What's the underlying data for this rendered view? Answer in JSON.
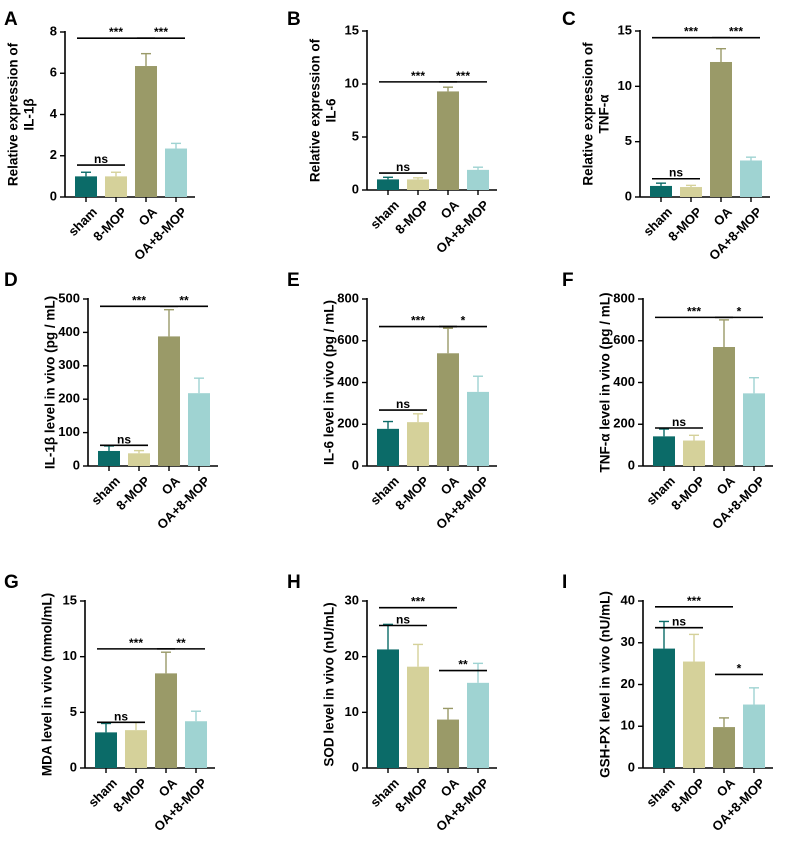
{
  "colors": [
    "#0b6b68",
    "#d5d19a",
    "#9a9a68",
    "#9fd3d2"
  ],
  "categories": [
    "sham",
    "8-MOP",
    "OA",
    "OA+8-MOP"
  ],
  "chart_data": [
    {
      "type": "bar",
      "letter": "A",
      "ylabel": [
        "Relative expression of",
        "IL-1β"
      ],
      "ylim": [
        0,
        8
      ],
      "ticks": [
        0,
        2,
        4,
        6,
        8
      ],
      "tick_labels": [
        "0",
        "2",
        "4",
        "6",
        "8"
      ],
      "values": [
        1.0,
        1.0,
        6.35,
        2.35
      ],
      "errors": [
        0.2,
        0.2,
        0.6,
        0.25
      ],
      "sig": [
        {
          "a": 0,
          "b": 1,
          "label": "ns",
          "y": 1.55
        },
        {
          "a": 0,
          "b": 2,
          "label": "***",
          "y": 7.7
        },
        {
          "a": 2,
          "b": 3,
          "label": "***",
          "y": 7.7
        }
      ]
    },
    {
      "type": "bar",
      "letter": "B",
      "ylabel": [
        "Relative expression of",
        "IL-6"
      ],
      "ylim": [
        0,
        15
      ],
      "ticks": [
        0,
        5,
        10,
        15
      ],
      "tick_labels": [
        "0",
        "5",
        "10",
        "15"
      ],
      "values": [
        1.0,
        1.0,
        9.3,
        1.9
      ],
      "errors": [
        0.2,
        0.15,
        0.4,
        0.25
      ],
      "sig": [
        {
          "a": 0,
          "b": 1,
          "label": "ns",
          "y": 1.6
        },
        {
          "a": 0,
          "b": 2,
          "label": "***",
          "y": 10.2
        },
        {
          "a": 2,
          "b": 3,
          "label": "***",
          "y": 10.2
        }
      ]
    },
    {
      "type": "bar",
      "letter": "C",
      "ylabel": [
        "Relative expression of",
        "TNF-α"
      ],
      "ylim": [
        0,
        15
      ],
      "ticks": [
        0,
        5,
        10,
        15
      ],
      "tick_labels": [
        "0",
        "5",
        "10",
        "15"
      ],
      "values": [
        1.0,
        0.9,
        12.2,
        3.3
      ],
      "errors": [
        0.25,
        0.15,
        1.2,
        0.3
      ],
      "sig": [
        {
          "a": 0,
          "b": 1,
          "label": "ns",
          "y": 1.65
        },
        {
          "a": 0,
          "b": 2,
          "label": "***",
          "y": 14.4
        },
        {
          "a": 2,
          "b": 3,
          "label": "***",
          "y": 14.4
        }
      ]
    },
    {
      "type": "bar",
      "letter": "D",
      "ylabel": [
        "IL-1β level in vivo (pg / mL)"
      ],
      "ylim": [
        0,
        500
      ],
      "ticks": [
        0,
        100,
        200,
        300,
        400,
        500
      ],
      "tick_labels": [
        "0",
        "100",
        "200",
        "300",
        "400",
        "500"
      ],
      "values": [
        45,
        38,
        388,
        218
      ],
      "errors": [
        15,
        8,
        80,
        45
      ],
      "sig": [
        {
          "a": 0,
          "b": 1,
          "label": "ns",
          "y": 62
        },
        {
          "a": 0,
          "b": 2,
          "label": "***",
          "y": 478
        },
        {
          "a": 2,
          "b": 3,
          "label": "**",
          "y": 478
        }
      ]
    },
    {
      "type": "bar",
      "letter": "E",
      "ylabel": [
        "IL-6 level in vivo (pg / mL)"
      ],
      "ylim": [
        0,
        800
      ],
      "ticks": [
        0,
        200,
        400,
        600,
        800
      ],
      "tick_labels": [
        "0",
        "200",
        "400",
        "600",
        "800"
      ],
      "values": [
        178,
        210,
        540,
        355
      ],
      "errors": [
        35,
        40,
        120,
        75
      ],
      "sig": [
        {
          "a": 0,
          "b": 1,
          "label": "ns",
          "y": 268
        },
        {
          "a": 0,
          "b": 2,
          "label": "***",
          "y": 668
        },
        {
          "a": 2,
          "b": 3,
          "label": "*",
          "y": 668
        }
      ]
    },
    {
      "type": "bar",
      "letter": "F",
      "ylabel": [
        "TNF-α level in vivo (pg / mL)"
      ],
      "ylim": [
        0,
        800
      ],
      "ticks": [
        0,
        200,
        400,
        600,
        800
      ],
      "tick_labels": [
        "0",
        "200",
        "400",
        "600",
        "800"
      ],
      "values": [
        142,
        122,
        570,
        348
      ],
      "errors": [
        35,
        25,
        130,
        75
      ],
      "sig": [
        {
          "a": 0,
          "b": 1,
          "label": "ns",
          "y": 182
        },
        {
          "a": 0,
          "b": 2,
          "label": "***",
          "y": 712
        },
        {
          "a": 2,
          "b": 3,
          "label": "*",
          "y": 712
        }
      ]
    },
    {
      "type": "bar",
      "letter": "G",
      "ylabel": [
        "MDA level in vivo (mmol/mL)"
      ],
      "ylim": [
        0,
        15
      ],
      "ticks": [
        0,
        5,
        10,
        15
      ],
      "tick_labels": [
        "0",
        "5",
        "10",
        "15"
      ],
      "values": [
        3.2,
        3.4,
        8.5,
        4.2
      ],
      "errors": [
        0.8,
        0.7,
        1.9,
        0.9
      ],
      "sig": [
        {
          "a": 0,
          "b": 1,
          "label": "ns",
          "y": 4.1
        },
        {
          "a": 0,
          "b": 2,
          "label": "***",
          "y": 10.7
        },
        {
          "a": 2,
          "b": 3,
          "label": "**",
          "y": 10.7
        }
      ]
    },
    {
      "type": "bar",
      "letter": "H",
      "ylabel": [
        "SOD level in vivo (nU/mL)"
      ],
      "ylim": [
        0,
        30
      ],
      "ticks": [
        0,
        10,
        20,
        30
      ],
      "tick_labels": [
        "0",
        "10",
        "20",
        "30"
      ],
      "values": [
        21.3,
        18.2,
        8.7,
        15.3
      ],
      "errors": [
        4.5,
        4.0,
        2.0,
        3.5
      ],
      "sig": [
        {
          "a": 0,
          "b": 1,
          "label": "ns",
          "y": 25.6
        },
        {
          "a": 0,
          "b": 2,
          "label": "***",
          "y": 28.8
        },
        {
          "a": 2,
          "b": 3,
          "label": "**",
          "y": 17.5
        }
      ]
    },
    {
      "type": "bar",
      "letter": "I",
      "ylabel": [
        "GSH-PX level in vivo (nU/mL)"
      ],
      "ylim": [
        0,
        40
      ],
      "ticks": [
        0,
        10,
        20,
        30,
        40
      ],
      "tick_labels": [
        "0",
        "10",
        "20",
        "30",
        "40"
      ],
      "values": [
        28.6,
        25.5,
        9.8,
        15.2
      ],
      "errors": [
        6.5,
        6.5,
        2.2,
        4.0
      ],
      "sig": [
        {
          "a": 0,
          "b": 1,
          "label": "ns",
          "y": 33.6
        },
        {
          "a": 0,
          "b": 2,
          "label": "***",
          "y": 38.6
        },
        {
          "a": 2,
          "b": 3,
          "label": "*",
          "y": 22.4
        }
      ]
    }
  ]
}
